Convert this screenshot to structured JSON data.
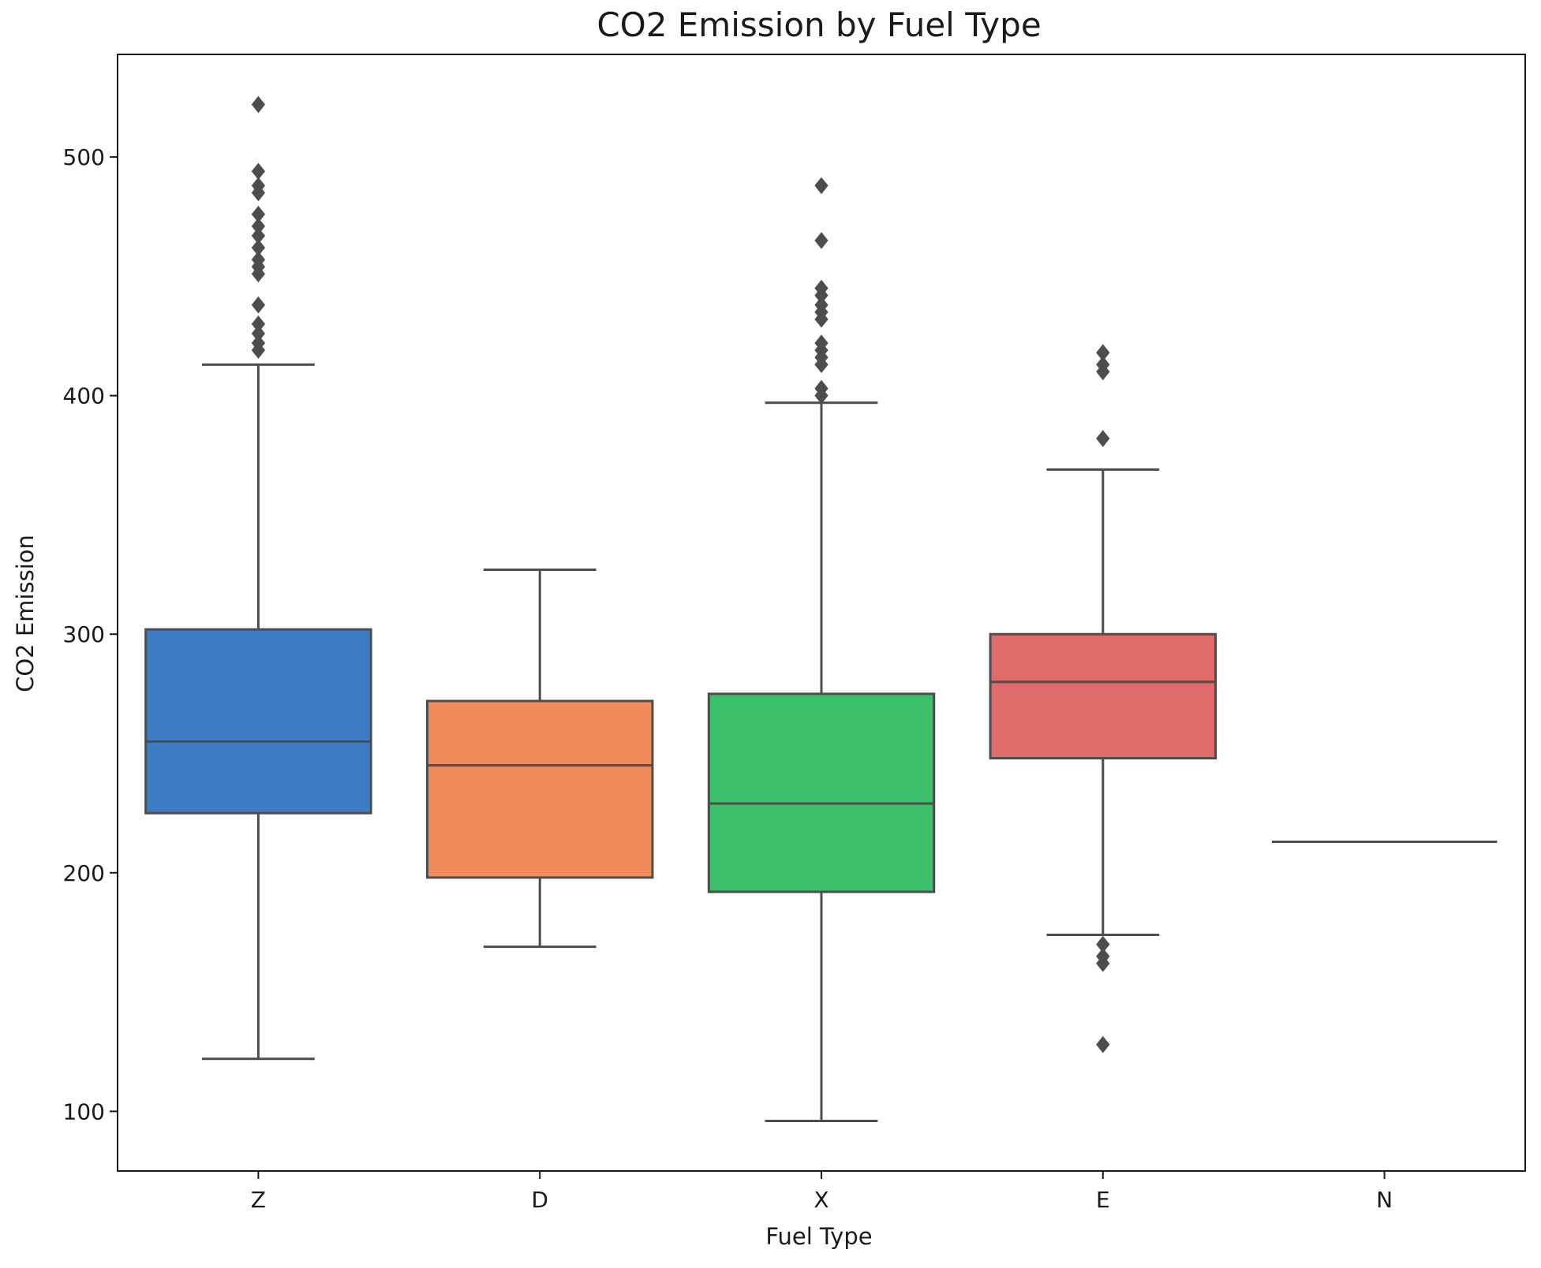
{
  "chart_data": {
    "type": "box",
    "title": "CO2 Emission by Fuel Type",
    "xlabel": "Fuel Type",
    "ylabel": "CO2 Emission",
    "ylim": [
      75,
      543
    ],
    "yticks": [
      100,
      200,
      300,
      400,
      500
    ],
    "grid": false,
    "categories": [
      "Z",
      "D",
      "X",
      "E",
      "N"
    ],
    "boxes": [
      {
        "category": "Z",
        "color": "#3f7cc4",
        "whisker_low": 122,
        "q1": 225,
        "median": 255,
        "q3": 302,
        "whisker_high": 413,
        "outliers": [
          419,
          422,
          426,
          430,
          438,
          451,
          454,
          457,
          462,
          467,
          471,
          476,
          485,
          488,
          494,
          522
        ]
      },
      {
        "category": "D",
        "color": "#f08c5c",
        "whisker_low": 169,
        "q1": 198,
        "median": 245,
        "q3": 272,
        "whisker_high": 327,
        "outliers": []
      },
      {
        "category": "X",
        "color": "#3bbf6b",
        "whisker_low": 96,
        "q1": 192,
        "median": 229,
        "q3": 275,
        "whisker_high": 397,
        "outliers": [
          400,
          403,
          413,
          416,
          419,
          422,
          432,
          435,
          438,
          442,
          445,
          465,
          488
        ]
      },
      {
        "category": "E",
        "color": "#e06b6b",
        "whisker_low": 174,
        "q1": 248,
        "median": 280,
        "q3": 300,
        "whisker_high": 369,
        "outliers": [
          128,
          162,
          165,
          170,
          382,
          410,
          413,
          418
        ]
      },
      {
        "category": "N",
        "color": "#7f7f7f",
        "whisker_low": 213,
        "q1": 213,
        "median": 213,
        "q3": 213,
        "whisker_high": 213,
        "outliers": []
      }
    ]
  }
}
